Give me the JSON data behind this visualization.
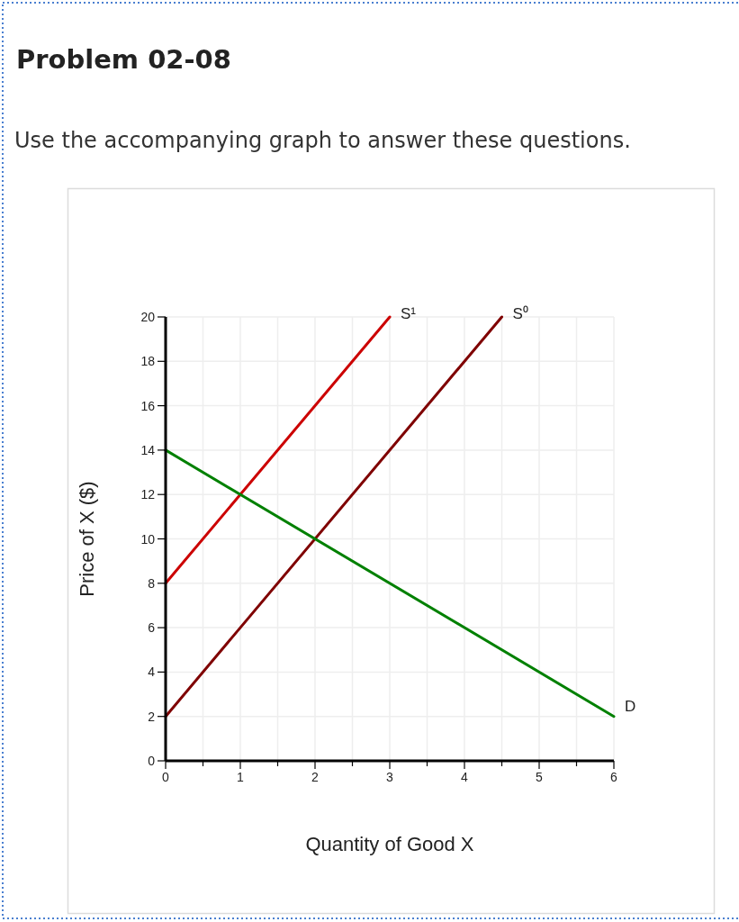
{
  "chart_data": {
    "type": "line",
    "title": "Problem 02-08",
    "subtitle": "Use the accompanying graph to answer these questions.",
    "xlabel": "Quantity of Good X",
    "ylabel": "Price of X ($)",
    "xlim": [
      0,
      6
    ],
    "ylim": [
      0,
      20
    ],
    "xticks": [
      0,
      {
        "value": 0.5,
        "label": null
      },
      1,
      {
        "value": 1.5,
        "label": null
      },
      2,
      {
        "value": 2.5,
        "label": null
      },
      3,
      {
        "value": 3.5,
        "label": null
      },
      4,
      {
        "value": 4.5,
        "label": null
      },
      5,
      {
        "value": 5.5,
        "label": null
      },
      6
    ],
    "yticks": [
      0,
      2,
      4,
      6,
      8,
      10,
      12,
      14,
      16,
      18,
      20
    ],
    "grid": true,
    "legend": false,
    "marker": "none",
    "line_style": "solid",
    "series": [
      {
        "name": "S¹",
        "color": "#cc0000",
        "x": [
          0,
          3
        ],
        "values": [
          8,
          20
        ]
      },
      {
        "name": "S⁰",
        "color": "#7f0000",
        "x": [
          0,
          4.5
        ],
        "values": [
          2,
          20
        ]
      },
      {
        "name": "D",
        "color": "#008000",
        "x": [
          0,
          6
        ],
        "values": [
          14,
          2
        ]
      }
    ]
  }
}
